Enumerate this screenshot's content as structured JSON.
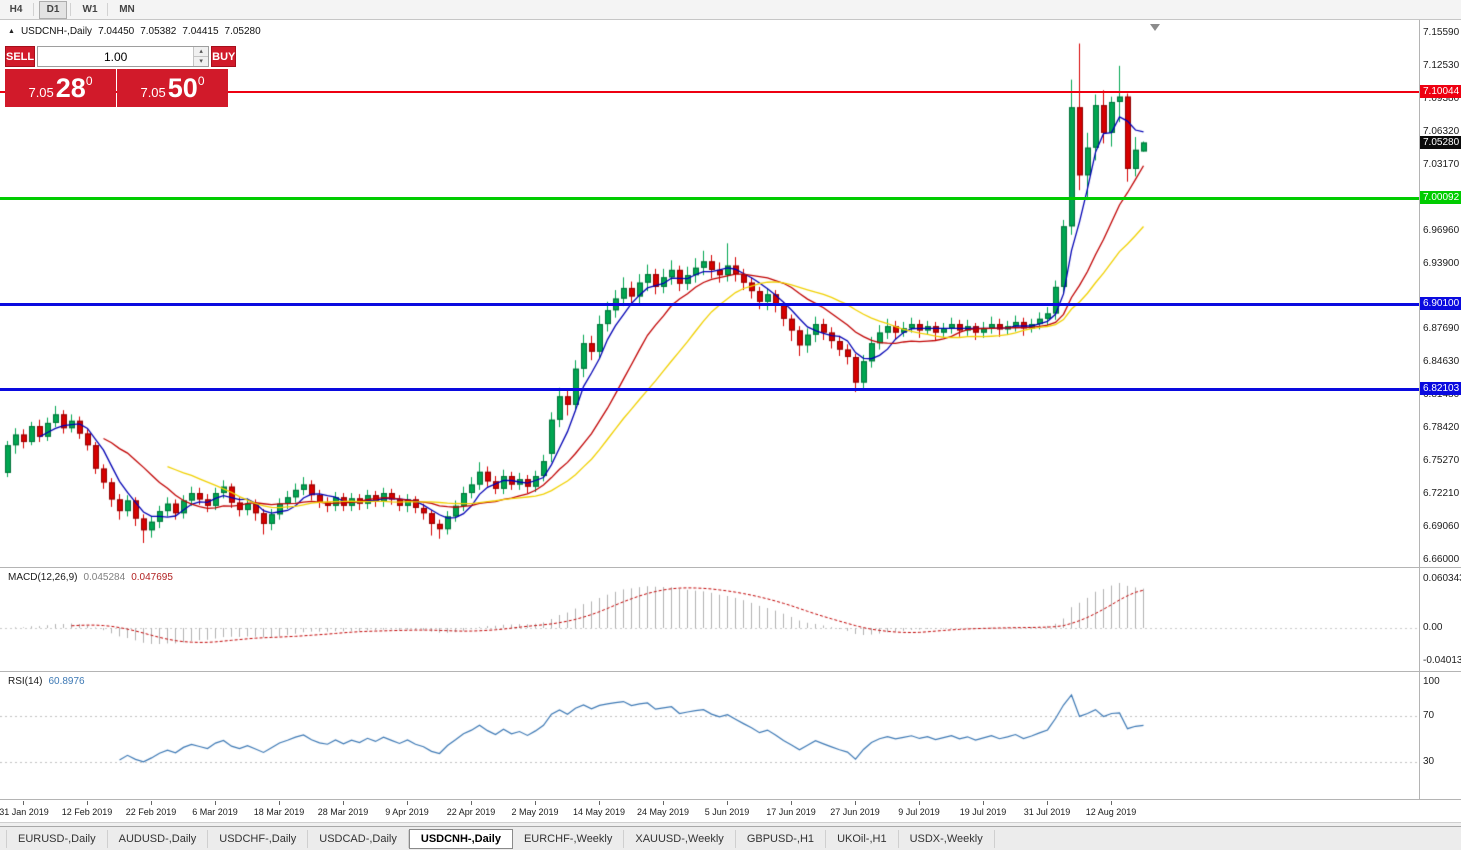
{
  "toolbar": {
    "timeframes": [
      {
        "label": "H4",
        "active": false
      },
      {
        "label": "D1",
        "active": true
      },
      {
        "label": "W1",
        "active": false
      },
      {
        "label": "MN",
        "active": false
      }
    ]
  },
  "info_bar": {
    "toggle_icon": "▲",
    "symbol": "USDCNH-,Daily",
    "open": "7.04450",
    "high": "7.05382",
    "low": "7.04415",
    "close": "7.05280"
  },
  "trade_panel": {
    "sell_label": "SELL",
    "buy_label": "BUY",
    "volume": "1.00",
    "sell_price": {
      "prefix": "7.05",
      "pips": "28",
      "pipette": "0"
    },
    "buy_price": {
      "prefix": "7.05",
      "pips": "50",
      "pipette": "0"
    }
  },
  "chart_data": {
    "type": "candlestick",
    "symbol": "USDCNH",
    "timeframe": "Daily",
    "colors": {
      "bull": "#00a651",
      "bull_stroke": "#00713a",
      "bear": "#d60000",
      "bear_stroke": "#8f0000",
      "ma_fast": "#0000b4",
      "ma_mid": "#c00000",
      "ma_slow": "#f0d000",
      "macd_hist": "#b0b0b0",
      "macd_signal": "#c00000",
      "rsi": "#3c78b4",
      "level_dotted": "#c0c0c0"
    },
    "price_axis": {
      "top_price": 7.1559,
      "bottom_price": 6.66,
      "labels": [
        "7.15590",
        "7.12530",
        "7.09380",
        "7.06320",
        "7.03170",
        "6.96960",
        "6.93900",
        "6.87690",
        "6.84630",
        "6.81480",
        "6.78420",
        "6.75270",
        "6.72210",
        "6.69060",
        "6.66000"
      ]
    },
    "hlines": [
      {
        "price": 7.10044,
        "label": "7.10044",
        "color": "#ee0011",
        "thickness": 2
      },
      {
        "price": 7.00092,
        "label": "7.00092",
        "color": "#00cc00",
        "thickness": 3
      },
      {
        "price": 6.901,
        "label": "6.90100",
        "color": "#0a0adf",
        "thickness": 3
      },
      {
        "price": 6.82103,
        "label": "6.82103",
        "color": "#0a0adf",
        "thickness": 3
      }
    ],
    "current_price": {
      "price": 7.0528,
      "label": "7.05280",
      "bg": "#0b0b0b"
    },
    "moving_averages": [
      {
        "period": 5,
        "color": "#0000b4"
      },
      {
        "period": 13,
        "color": "#c00000"
      },
      {
        "period": 21,
        "color": "#f0d000"
      }
    ],
    "candles": [
      [
        6.742,
        6.772,
        6.738,
        6.768
      ],
      [
        6.768,
        6.784,
        6.76,
        6.778
      ],
      [
        6.778,
        6.783,
        6.765,
        6.771
      ],
      [
        6.771,
        6.79,
        6.768,
        6.786
      ],
      [
        6.786,
        6.792,
        6.771,
        6.776
      ],
      [
        6.776,
        6.794,
        6.772,
        6.789
      ],
      [
        6.789,
        6.805,
        6.785,
        6.797
      ],
      [
        6.797,
        6.801,
        6.779,
        6.784
      ],
      [
        6.784,
        6.797,
        6.78,
        6.791
      ],
      [
        6.791,
        6.795,
        6.774,
        6.779
      ],
      [
        6.779,
        6.783,
        6.763,
        6.768
      ],
      [
        6.768,
        6.771,
        6.741,
        6.746
      ],
      [
        6.746,
        6.75,
        6.727,
        6.733
      ],
      [
        6.733,
        6.737,
        6.71,
        6.717
      ],
      [
        6.717,
        6.722,
        6.698,
        6.706
      ],
      [
        6.706,
        6.721,
        6.701,
        6.716
      ],
      [
        6.716,
        6.719,
        6.692,
        6.699
      ],
      [
        6.699,
        6.703,
        6.676,
        6.688
      ],
      [
        6.688,
        6.701,
        6.681,
        6.696
      ],
      [
        6.696,
        6.711,
        6.69,
        6.706
      ],
      [
        6.706,
        6.719,
        6.701,
        6.713
      ],
      [
        6.713,
        6.717,
        6.698,
        6.704
      ],
      [
        6.704,
        6.721,
        6.699,
        6.716
      ],
      [
        6.716,
        6.729,
        6.711,
        6.723
      ],
      [
        6.723,
        6.728,
        6.712,
        6.717
      ],
      [
        6.717,
        6.722,
        6.705,
        6.711
      ],
      [
        6.711,
        6.728,
        6.707,
        6.723
      ],
      [
        6.723,
        6.735,
        6.718,
        6.729
      ],
      [
        6.729,
        6.732,
        6.709,
        6.714
      ],
      [
        6.714,
        6.719,
        6.701,
        6.707
      ],
      [
        6.707,
        6.718,
        6.702,
        6.713
      ],
      [
        6.713,
        6.717,
        6.697,
        6.704
      ],
      [
        6.704,
        6.708,
        6.684,
        6.694
      ],
      [
        6.694,
        6.708,
        6.688,
        6.703
      ],
      [
        6.703,
        6.718,
        6.698,
        6.713
      ],
      [
        6.713,
        6.725,
        6.708,
        6.719
      ],
      [
        6.719,
        6.732,
        6.714,
        6.726
      ],
      [
        6.726,
        6.738,
        6.721,
        6.731
      ],
      [
        6.731,
        6.735,
        6.716,
        6.721
      ],
      [
        6.721,
        6.726,
        6.709,
        6.714
      ],
      [
        6.714,
        6.719,
        6.705,
        6.711
      ],
      [
        6.711,
        6.724,
        6.706,
        6.719
      ],
      [
        6.719,
        6.723,
        6.706,
        6.711
      ],
      [
        6.711,
        6.723,
        6.706,
        6.718
      ],
      [
        6.718,
        6.722,
        6.707,
        6.713
      ],
      [
        6.713,
        6.726,
        6.708,
        6.721
      ],
      [
        6.721,
        6.725,
        6.71,
        6.715
      ],
      [
        6.715,
        6.728,
        6.71,
        6.723
      ],
      [
        6.723,
        6.727,
        6.712,
        6.717
      ],
      [
        6.717,
        6.721,
        6.706,
        6.711
      ],
      [
        6.711,
        6.722,
        6.705,
        6.717
      ],
      [
        6.717,
        6.72,
        6.704,
        6.709
      ],
      [
        6.709,
        6.713,
        6.698,
        6.704
      ],
      [
        6.704,
        6.707,
        6.683,
        6.694
      ],
      [
        6.694,
        6.698,
        6.68,
        6.689
      ],
      [
        6.689,
        6.706,
        6.684,
        6.701
      ],
      [
        6.701,
        6.716,
        6.696,
        6.711
      ],
      [
        6.711,
        6.729,
        6.706,
        6.723
      ],
      [
        6.723,
        6.738,
        6.718,
        6.731
      ],
      [
        6.731,
        6.752,
        6.726,
        6.743
      ],
      [
        6.743,
        6.748,
        6.729,
        6.734
      ],
      [
        6.734,
        6.739,
        6.722,
        6.727
      ],
      [
        6.727,
        6.745,
        6.722,
        6.739
      ],
      [
        6.739,
        6.743,
        6.726,
        6.731
      ],
      [
        6.731,
        6.742,
        6.726,
        6.736
      ],
      [
        6.736,
        6.74,
        6.723,
        6.729
      ],
      [
        6.729,
        6.744,
        6.724,
        6.739
      ],
      [
        6.739,
        6.759,
        6.734,
        6.753
      ],
      [
        6.76,
        6.799,
        6.752,
        6.792
      ],
      [
        6.792,
        6.822,
        6.785,
        6.814
      ],
      [
        6.814,
        6.82,
        6.796,
        6.806
      ],
      [
        6.806,
        6.848,
        6.8,
        6.84
      ],
      [
        6.84,
        6.872,
        6.832,
        6.864
      ],
      [
        6.864,
        6.871,
        6.848,
        6.856
      ],
      [
        6.856,
        6.89,
        6.85,
        6.882
      ],
      [
        6.882,
        6.903,
        6.875,
        6.895
      ],
      [
        6.895,
        6.914,
        6.888,
        6.906
      ],
      [
        6.906,
        6.926,
        6.899,
        6.916
      ],
      [
        6.916,
        6.922,
        6.9,
        6.908
      ],
      [
        6.908,
        6.929,
        6.901,
        6.921
      ],
      [
        6.921,
        6.938,
        6.913,
        6.929
      ],
      [
        6.929,
        6.934,
        6.91,
        6.917
      ],
      [
        6.917,
        6.934,
        6.911,
        6.926
      ],
      [
        6.926,
        6.942,
        6.919,
        6.933
      ],
      [
        6.933,
        6.937,
        6.913,
        6.92
      ],
      [
        6.92,
        6.936,
        6.914,
        6.928
      ],
      [
        6.928,
        6.944,
        6.921,
        6.935
      ],
      [
        6.935,
        6.951,
        6.928,
        6.941
      ],
      [
        6.941,
        6.947,
        6.925,
        6.933
      ],
      [
        6.933,
        6.94,
        6.921,
        6.928
      ],
      [
        6.928,
        6.958,
        6.922,
        6.937
      ],
      [
        6.937,
        6.945,
        6.922,
        6.929
      ],
      [
        6.929,
        6.934,
        6.914,
        6.921
      ],
      [
        6.921,
        6.926,
        6.906,
        6.913
      ],
      [
        6.913,
        6.917,
        6.896,
        6.903
      ],
      [
        6.903,
        6.916,
        6.895,
        6.91
      ],
      [
        6.91,
        6.914,
        6.893,
        6.9
      ],
      [
        6.9,
        6.903,
        6.88,
        6.887
      ],
      [
        6.887,
        6.891,
        6.866,
        6.876
      ],
      [
        6.876,
        6.88,
        6.852,
        6.862
      ],
      [
        6.862,
        6.878,
        6.855,
        6.872
      ],
      [
        6.872,
        6.889,
        6.865,
        6.882
      ],
      [
        6.882,
        6.887,
        6.867,
        6.874
      ],
      [
        6.874,
        6.879,
        6.859,
        6.866
      ],
      [
        6.866,
        6.871,
        6.852,
        6.858
      ],
      [
        6.858,
        6.863,
        6.844,
        6.851
      ],
      [
        6.851,
        6.854,
        6.818,
        6.827
      ],
      [
        6.827,
        6.853,
        6.821,
        6.847
      ],
      [
        6.847,
        6.87,
        6.841,
        6.864
      ],
      [
        6.864,
        6.881,
        6.858,
        6.874
      ],
      [
        6.874,
        6.887,
        6.868,
        6.88
      ],
      [
        6.88,
        6.885,
        6.867,
        6.874
      ],
      [
        6.874,
        6.884,
        6.87,
        6.878
      ],
      [
        6.878,
        6.888,
        6.874,
        6.882
      ],
      [
        6.882,
        6.886,
        6.869,
        6.876
      ],
      [
        6.876,
        6.885,
        6.872,
        6.88
      ],
      [
        6.88,
        6.884,
        6.867,
        6.874
      ],
      [
        6.874,
        6.883,
        6.87,
        6.878
      ],
      [
        6.878,
        6.888,
        6.873,
        6.882
      ],
      [
        6.882,
        6.886,
        6.87,
        6.876
      ],
      [
        6.876,
        6.886,
        6.871,
        6.88
      ],
      [
        6.88,
        6.883,
        6.867,
        6.874
      ],
      [
        6.874,
        6.884,
        6.869,
        6.878
      ],
      [
        6.878,
        6.889,
        6.873,
        6.882
      ],
      [
        6.882,
        6.887,
        6.87,
        6.877
      ],
      [
        6.877,
        6.885,
        6.872,
        6.88
      ],
      [
        6.88,
        6.89,
        6.875,
        6.884
      ],
      [
        6.884,
        6.888,
        6.871,
        6.878
      ],
      [
        6.878,
        6.887,
        6.874,
        6.882
      ],
      [
        6.882,
        6.893,
        6.877,
        6.887
      ],
      [
        6.887,
        6.898,
        6.881,
        6.892
      ],
      [
        6.892,
        6.923,
        6.886,
        6.917
      ],
      [
        6.917,
        6.98,
        6.91,
        6.974
      ],
      [
        6.974,
        7.112,
        6.966,
        7.086
      ],
      [
        7.086,
        7.146,
        7.008,
        7.022
      ],
      [
        7.022,
        7.062,
        6.999,
        7.048
      ],
      [
        7.048,
        7.098,
        7.036,
        7.088
      ],
      [
        7.088,
        7.102,
        7.052,
        7.062
      ],
      [
        7.062,
        7.096,
        7.049,
        7.091
      ],
      [
        7.091,
        7.125,
        7.072,
        7.096
      ],
      [
        7.096,
        7.099,
        7.016,
        7.028
      ],
      [
        7.028,
        7.058,
        7.021,
        7.046
      ],
      [
        7.0445,
        7.0538,
        7.0442,
        7.0528
      ]
    ],
    "x_labels": [
      {
        "i": 2,
        "text": "31 Jan 2019"
      },
      {
        "i": 10,
        "text": "12 Feb 2019"
      },
      {
        "i": 18,
        "text": "22 Feb 2019"
      },
      {
        "i": 26,
        "text": "6 Mar 2019"
      },
      {
        "i": 34,
        "text": "18 Mar 2019"
      },
      {
        "i": 42,
        "text": "28 Mar 2019"
      },
      {
        "i": 50,
        "text": "9 Apr 2019"
      },
      {
        "i": 58,
        "text": "22 Apr 2019"
      },
      {
        "i": 66,
        "text": "2 May 2019"
      },
      {
        "i": 74,
        "text": "14 May 2019"
      },
      {
        "i": 82,
        "text": "24 May 2019"
      },
      {
        "i": 90,
        "text": "5 Jun 2019"
      },
      {
        "i": 98,
        "text": "17 Jun 2019"
      },
      {
        "i": 106,
        "text": "27 Jun 2019"
      },
      {
        "i": 114,
        "text": "9 Jul 2019"
      },
      {
        "i": 122,
        "text": "19 Jul 2019"
      },
      {
        "i": 130,
        "text": "31 Jul 2019"
      },
      {
        "i": 138,
        "text": "12 Aug 2019"
      }
    ],
    "macd": {
      "label": "MACD(12,26,9)",
      "value": "0.045284",
      "signal_value": "0.047695",
      "fast": 12,
      "slow": 26,
      "signal": 9,
      "axis": [
        {
          "text": "0.060343",
          "v": 0.060343
        },
        {
          "text": "0.00",
          "v": 0
        },
        {
          "text": "-0.040136",
          "v": -0.040136
        }
      ]
    },
    "rsi": {
      "label": "RSI(14)",
      "value": "60.8976",
      "period": 14,
      "axis": [
        {
          "text": "100",
          "v": 100
        },
        {
          "text": "70",
          "v": 70
        },
        {
          "text": "30",
          "v": 30
        }
      ],
      "levels": [
        70,
        30
      ]
    }
  },
  "tabs": [
    {
      "label": "EURUSD-,Daily",
      "active": false
    },
    {
      "label": "AUDUSD-,Daily",
      "active": false
    },
    {
      "label": "USDCHF-,Daily",
      "active": false
    },
    {
      "label": "USDCAD-,Daily",
      "active": false
    },
    {
      "label": "USDCNH-,Daily",
      "active": true
    },
    {
      "label": "EURCHF-,Weekly",
      "active": false
    },
    {
      "label": "XAUUSD-,Weekly",
      "active": false
    },
    {
      "label": "GBPUSD-,H1",
      "active": false
    },
    {
      "label": "UKOil-,H1",
      "active": false
    },
    {
      "label": "USDX-,Weekly",
      "active": false
    }
  ]
}
